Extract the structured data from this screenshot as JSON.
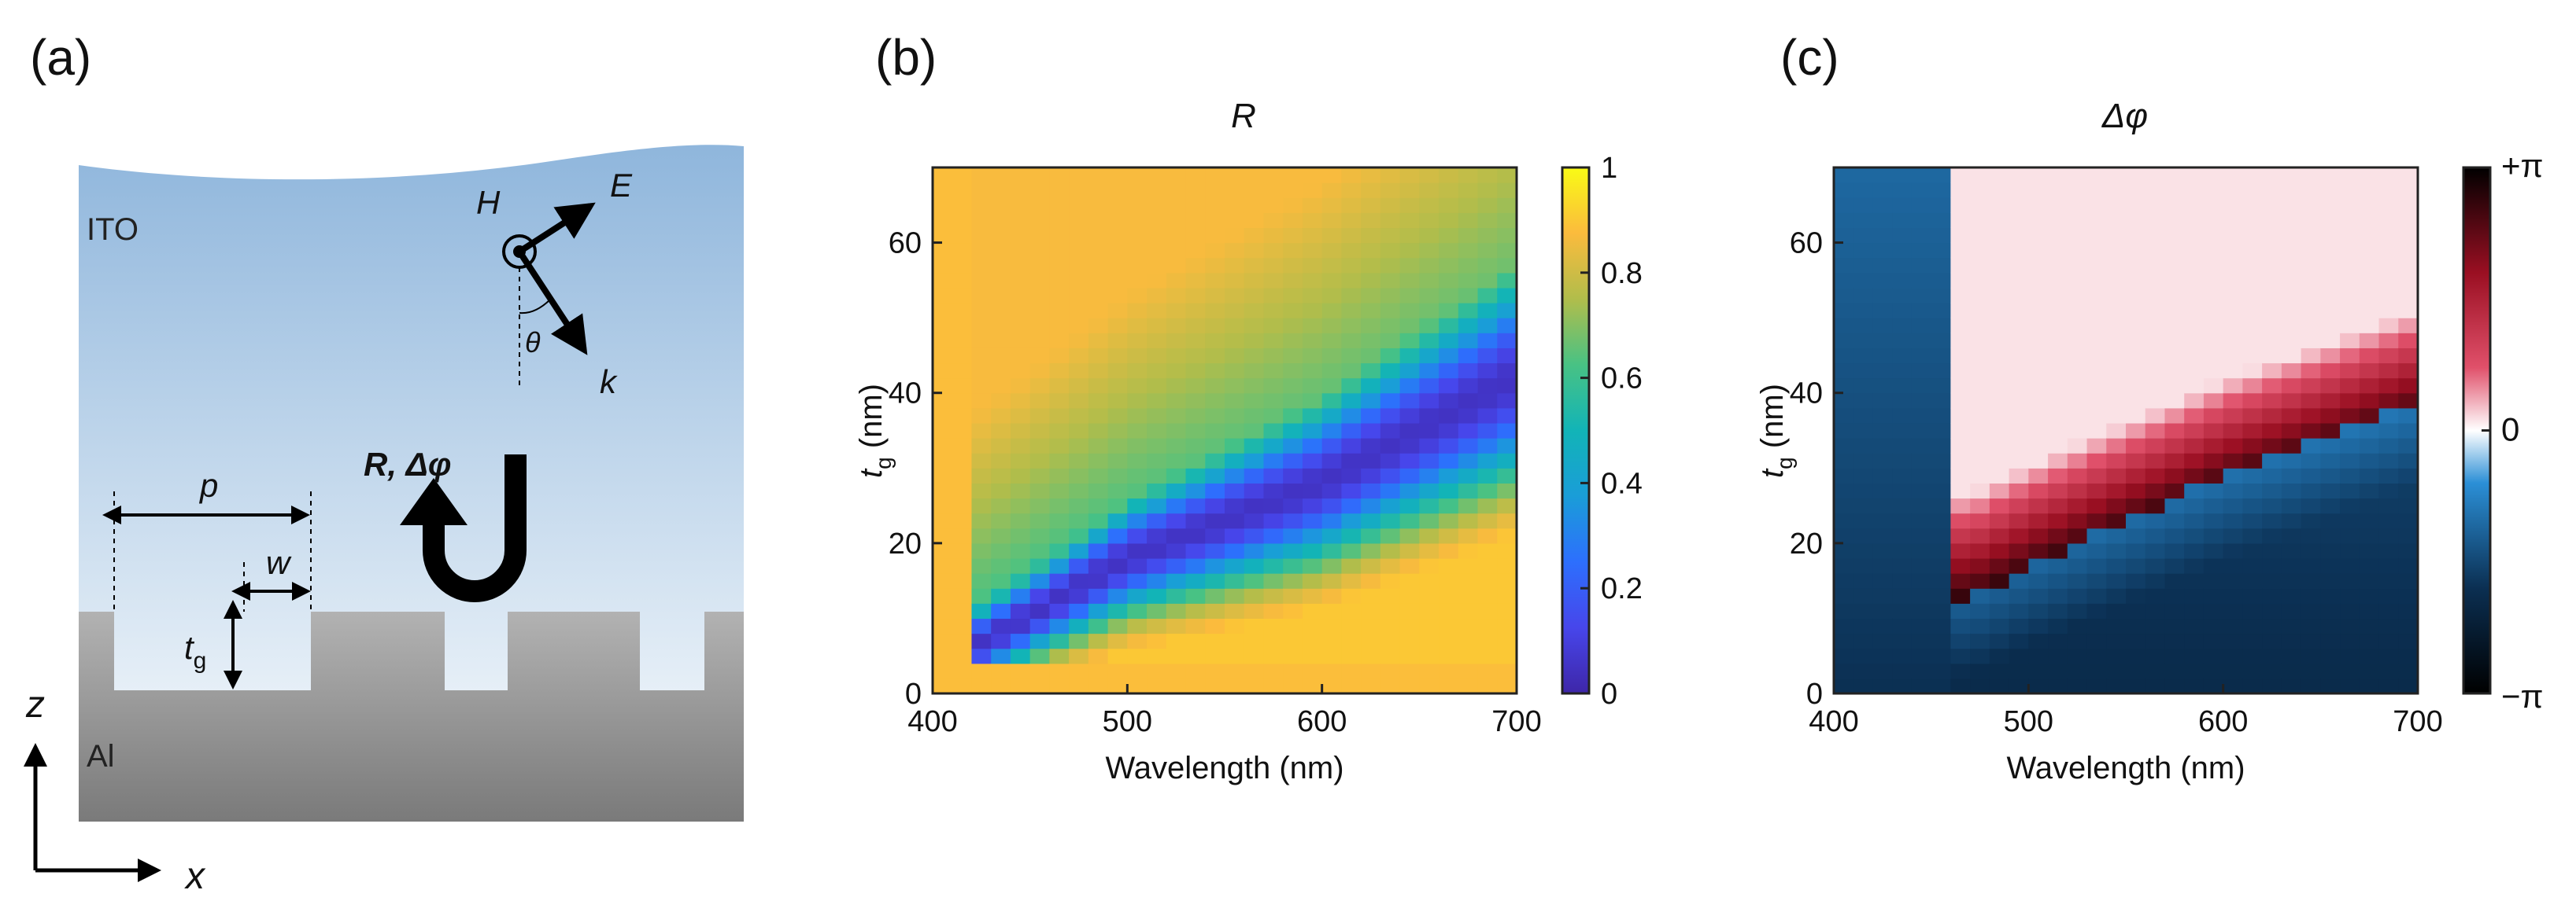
{
  "panels": {
    "a": {
      "label": "(a)",
      "ito_label": "ITO",
      "al_label": "Al",
      "h_label": "H",
      "e_label": "E",
      "k_label": "k",
      "theta_label": "θ",
      "p_label": "p",
      "w_label": "w",
      "tg_label": "t",
      "tg_sub": "g",
      "reflect_label": "R, Δφ",
      "z_label": "z",
      "x_label": "x",
      "colors": {
        "ito_top": "#8fb6dc",
        "ito_bottom": "#e6eff7",
        "al_top": "#b2b2b2",
        "al_bottom": "#7a7a7a"
      }
    },
    "b": {
      "label": "(b)"
    },
    "c": {
      "label": "(c)"
    }
  },
  "chart_data": [
    {
      "type": "heatmap",
      "panel": "b",
      "title": "R",
      "xlabel": "Wavelength (nm)",
      "ylabel_main": "t",
      "ylabel_sub": "g",
      "ylabel_unit": " (nm)",
      "xlim": [
        400,
        700
      ],
      "ylim": [
        0,
        70
      ],
      "x_ticks": [
        400,
        500,
        600,
        700
      ],
      "x_tick_labels": [
        "400",
        "500",
        "600",
        "700"
      ],
      "y_ticks": [
        0,
        20,
        40,
        60
      ],
      "y_tick_labels": [
        "0",
        "20",
        "40",
        "60"
      ],
      "colorbar": {
        "min": 0,
        "max": 1,
        "ticks": [
          0,
          0.2,
          0.4,
          0.6,
          0.8,
          1
        ],
        "tick_labels": [
          "0",
          "0.2",
          "0.4",
          "0.6",
          "0.8",
          "1"
        ],
        "colormap": "parula"
      },
      "description_grid": {
        "x_min": 400,
        "x_max": 700,
        "x_step": 10,
        "y_min": 0,
        "y_max": 70,
        "y_step": 2
      },
      "resonance_dip": {
        "x": [
          420,
          500,
          600,
          700
        ],
        "y": [
          6,
          18,
          28,
          42
        ],
        "value_min": 0.05
      }
    },
    {
      "type": "heatmap",
      "panel": "c",
      "title": "Δφ",
      "xlabel": "Wavelength (nm)",
      "ylabel_main": "t",
      "ylabel_sub": "g",
      "ylabel_unit": " (nm)",
      "xlim": [
        400,
        700
      ],
      "ylim": [
        0,
        70
      ],
      "x_ticks": [
        400,
        500,
        600,
        700
      ],
      "x_tick_labels": [
        "400",
        "500",
        "600",
        "700"
      ],
      "y_ticks": [
        0,
        20,
        40,
        60
      ],
      "y_tick_labels": [
        "0",
        "20",
        "40",
        "60"
      ],
      "colorbar": {
        "min": -3.14159,
        "max": 3.14159,
        "tick_labels": [
          "+π",
          "0",
          "−π"
        ],
        "colormap": "blue-black-red-white"
      },
      "description_grid": {
        "x_min": 400,
        "x_max": 700,
        "x_step": 10,
        "y_min": 0,
        "y_max": 70,
        "y_step": 2
      },
      "phase_boundary": {
        "x": [
          470,
          500,
          550,
          600,
          700
        ],
        "y": [
          14,
          18,
          24,
          30,
          40
        ]
      }
    }
  ]
}
